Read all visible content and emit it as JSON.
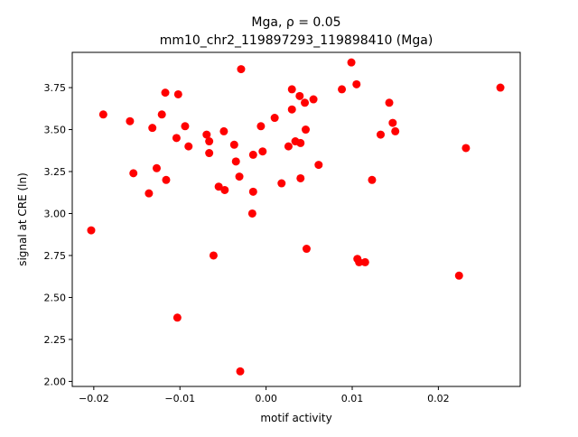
{
  "chart_data": {
    "type": "scatter",
    "title_line1": "Mga, ρ = 0.05",
    "title_line2": "mm10_chr2_119897293_119898410 (Mga)",
    "xlabel": "motif activity",
    "ylabel": "signal at CRE (ln)",
    "xlim": [
      -0.0225,
      0.0295
    ],
    "ylim": [
      1.97,
      3.96
    ],
    "xticks": [
      -0.02,
      -0.01,
      0.0,
      0.01,
      0.02
    ],
    "xtick_labels": [
      "−0.02",
      "−0.01",
      "0.00",
      "0.01",
      "0.02"
    ],
    "yticks": [
      2.0,
      2.25,
      2.5,
      2.75,
      3.0,
      3.25,
      3.5,
      3.75
    ],
    "ytick_labels": [
      "2.00",
      "2.25",
      "2.50",
      "2.75",
      "3.00",
      "3.25",
      "3.50",
      "3.75"
    ],
    "marker_color": "#ff0000",
    "grid": false,
    "points": [
      {
        "x": -0.0203,
        "y": 2.9
      },
      {
        "x": -0.0189,
        "y": 3.59
      },
      {
        "x": -0.0158,
        "y": 3.55
      },
      {
        "x": -0.0154,
        "y": 3.24
      },
      {
        "x": -0.0136,
        "y": 3.12
      },
      {
        "x": -0.0132,
        "y": 3.51
      },
      {
        "x": -0.0127,
        "y": 3.27
      },
      {
        "x": -0.0121,
        "y": 3.59
      },
      {
        "x": -0.0117,
        "y": 3.72
      },
      {
        "x": -0.0116,
        "y": 3.2
      },
      {
        "x": -0.0104,
        "y": 3.45
      },
      {
        "x": -0.0102,
        "y": 3.71
      },
      {
        "x": -0.0103,
        "y": 2.38
      },
      {
        "x": -0.0094,
        "y": 3.52
      },
      {
        "x": -0.009,
        "y": 3.4
      },
      {
        "x": -0.0069,
        "y": 3.47
      },
      {
        "x": -0.0066,
        "y": 3.43
      },
      {
        "x": -0.0066,
        "y": 3.36
      },
      {
        "x": -0.0061,
        "y": 2.75
      },
      {
        "x": -0.0055,
        "y": 3.16
      },
      {
        "x": -0.0049,
        "y": 3.49
      },
      {
        "x": -0.0048,
        "y": 3.14
      },
      {
        "x": -0.0037,
        "y": 3.41
      },
      {
        "x": -0.0035,
        "y": 3.31
      },
      {
        "x": -0.0031,
        "y": 3.22
      },
      {
        "x": -0.0029,
        "y": 3.86
      },
      {
        "x": -0.003,
        "y": 2.06
      },
      {
        "x": -0.0015,
        "y": 3.35
      },
      {
        "x": -0.0015,
        "y": 3.13
      },
      {
        "x": -0.0016,
        "y": 3.0
      },
      {
        "x": -0.0006,
        "y": 3.52
      },
      {
        "x": -0.0004,
        "y": 3.37
      },
      {
        "x": 0.001,
        "y": 3.57
      },
      {
        "x": 0.0018,
        "y": 3.18
      },
      {
        "x": 0.0026,
        "y": 3.4
      },
      {
        "x": 0.003,
        "y": 3.74
      },
      {
        "x": 0.003,
        "y": 3.62
      },
      {
        "x": 0.0034,
        "y": 3.43
      },
      {
        "x": 0.0039,
        "y": 3.7
      },
      {
        "x": 0.004,
        "y": 3.42
      },
      {
        "x": 0.004,
        "y": 3.21
      },
      {
        "x": 0.0045,
        "y": 3.66
      },
      {
        "x": 0.0046,
        "y": 3.5
      },
      {
        "x": 0.0047,
        "y": 2.79
      },
      {
        "x": 0.0055,
        "y": 3.68
      },
      {
        "x": 0.0061,
        "y": 3.29
      },
      {
        "x": 0.0088,
        "y": 3.74
      },
      {
        "x": 0.0099,
        "y": 3.9
      },
      {
        "x": 0.0105,
        "y": 3.77
      },
      {
        "x": 0.0106,
        "y": 2.73
      },
      {
        "x": 0.0108,
        "y": 2.71
      },
      {
        "x": 0.0115,
        "y": 2.71
      },
      {
        "x": 0.0123,
        "y": 3.2
      },
      {
        "x": 0.0133,
        "y": 3.47
      },
      {
        "x": 0.0143,
        "y": 3.66
      },
      {
        "x": 0.0147,
        "y": 3.54
      },
      {
        "x": 0.015,
        "y": 3.49
      },
      {
        "x": 0.0224,
        "y": 2.63
      },
      {
        "x": 0.0232,
        "y": 3.39
      },
      {
        "x": 0.0272,
        "y": 3.75
      }
    ]
  }
}
